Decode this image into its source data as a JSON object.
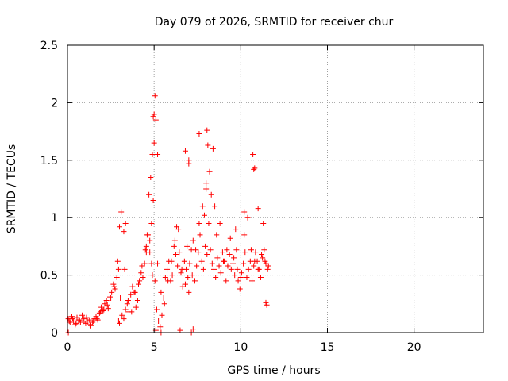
{
  "chart_data": {
    "type": "scatter",
    "title": "Day 079 of 2026, SRMTID for receiver chur",
    "xlabel": "GPS time / hours",
    "ylabel": "SRMTID / TECUs",
    "xlim": [
      0,
      24
    ],
    "ylim": [
      0,
      2.5
    ],
    "xticks": [
      0,
      5,
      10,
      15,
      20
    ],
    "yticks": [
      0,
      0.5,
      1,
      1.5,
      2,
      2.5
    ],
    "ytick_labels": [
      "0",
      "0.5",
      "1",
      "1.5",
      "2",
      "2.5"
    ],
    "grid": true,
    "marker": "+",
    "series": [
      {
        "name": "chur",
        "color": "#ff0000",
        "x": [
          0.05,
          0.15,
          0.25,
          0.35,
          0.45,
          0.55,
          0.65,
          0.75,
          0.85,
          0.95,
          1.05,
          1.15,
          1.25,
          1.35,
          1.45,
          1.55,
          1.65,
          1.75,
          1.85,
          1.95,
          2.05,
          2.15,
          2.25,
          2.35,
          2.45,
          2.55,
          2.65,
          2.75,
          2.85,
          2.95,
          3.05,
          3.15,
          3.25,
          3.35,
          3.45,
          3.55,
          3.65,
          3.75,
          3.85,
          3.95,
          4.05,
          4.15,
          4.25,
          4.35,
          4.45,
          4.55,
          4.65,
          4.75,
          4.85,
          4.95,
          5.05,
          5.15,
          5.25,
          5.35,
          5.45,
          5.55,
          5.65,
          5.75,
          5.85,
          5.95,
          6.05,
          6.15,
          6.25,
          6.35,
          6.45,
          6.55,
          6.65,
          6.75,
          6.85,
          6.95,
          7.05,
          7.15,
          7.25,
          7.35,
          7.45,
          7.55,
          7.65,
          7.75,
          7.85,
          7.95,
          8.05,
          8.15,
          8.25,
          8.35,
          8.45,
          8.55,
          8.65,
          8.75,
          8.85,
          8.95,
          9.05,
          9.15,
          9.25,
          9.35,
          9.45,
          9.55,
          9.65,
          9.75,
          9.85,
          9.95,
          10.05,
          10.15,
          10.25,
          10.35,
          10.45,
          10.55,
          10.65,
          10.75,
          10.85,
          10.95,
          11.05,
          11.15,
          11.25,
          11.35,
          11.45,
          11.55,
          0.1,
          0.3,
          0.5,
          0.7,
          0.9,
          1.1,
          1.3,
          1.5,
          1.7,
          1.9,
          2.1,
          2.3,
          2.5,
          2.7,
          2.9,
          3.0,
          3.1,
          3.3,
          3.5,
          3.7,
          3.9,
          4.1,
          4.3,
          4.5,
          4.6,
          4.7,
          4.8,
          4.9,
          5.0,
          5.1,
          5.2,
          5.4,
          5.6,
          5.8,
          6.0,
          6.2,
          6.4,
          6.6,
          6.8,
          7.0,
          7.2,
          7.4,
          7.6,
          7.8,
          8.0,
          8.2,
          8.4,
          8.6,
          8.8,
          9.0,
          9.2,
          9.4,
          9.6,
          9.8,
          10.0,
          10.2,
          10.4,
          10.6,
          10.8,
          11.0,
          11.2,
          11.4,
          11.6,
          0.05,
          5.0,
          5.05,
          4.95,
          5.2,
          6.8,
          7.0,
          8.05,
          8.1,
          7.6,
          7.0,
          10.7,
          10.75,
          10.8,
          2.95,
          3.0,
          4.9,
          4.85,
          5.1,
          5.4,
          6.5,
          7.15,
          7.25,
          8.0,
          8.3,
          9.25,
          11.5,
          11.45,
          3.25,
          3.35,
          4.75,
          4.55,
          6.3,
          6.9,
          7.9,
          8.5,
          9.7,
          10.2,
          11.0,
          11.3
        ],
        "y": [
          0.12,
          0.09,
          0.14,
          0.1,
          0.07,
          0.13,
          0.11,
          0.09,
          0.15,
          0.12,
          0.08,
          0.1,
          0.11,
          0.06,
          0.09,
          0.12,
          0.14,
          0.11,
          0.17,
          0.22,
          0.19,
          0.25,
          0.28,
          0.21,
          0.31,
          0.35,
          0.42,
          0.38,
          0.48,
          0.55,
          0.3,
          0.15,
          0.12,
          0.2,
          0.25,
          0.18,
          0.33,
          0.4,
          0.35,
          0.22,
          0.28,
          0.45,
          0.52,
          0.48,
          0.6,
          0.75,
          0.85,
          0.7,
          0.95,
          1.15,
          0.45,
          0.2,
          0.1,
          0.05,
          0.15,
          0.3,
          0.48,
          0.55,
          0.62,
          0.45,
          0.5,
          0.75,
          0.68,
          0.58,
          0.7,
          0.52,
          0.4,
          0.62,
          0.55,
          0.48,
          0.6,
          0.72,
          0.8,
          0.45,
          0.58,
          0.7,
          0.85,
          0.62,
          0.55,
          0.75,
          0.68,
          0.95,
          0.72,
          0.6,
          0.55,
          0.48,
          0.65,
          0.58,
          0.52,
          0.7,
          0.62,
          0.45,
          0.58,
          0.68,
          0.55,
          0.6,
          0.5,
          0.72,
          0.45,
          0.38,
          0.52,
          0.6,
          0.7,
          0.48,
          0.55,
          0.62,
          0.45,
          0.58,
          0.7,
          0.62,
          0.55,
          0.48,
          0.65,
          0.72,
          0.6,
          0.55,
          0.1,
          0.12,
          0.08,
          0.11,
          0.09,
          0.13,
          0.07,
          0.1,
          0.12,
          0.18,
          0.2,
          0.24,
          0.3,
          0.4,
          0.62,
          0.92,
          1.05,
          0.55,
          0.28,
          0.18,
          0.35,
          0.42,
          0.58,
          0.72,
          0.85,
          1.2,
          1.35,
          1.55,
          1.65,
          1.85,
          0.6,
          0.35,
          0.25,
          0.45,
          0.62,
          0.8,
          0.9,
          0.55,
          0.42,
          0.35,
          0.5,
          0.72,
          0.95,
          1.1,
          1.25,
          1.4,
          1.6,
          0.85,
          0.95,
          0.62,
          0.72,
          0.82,
          0.65,
          0.55,
          0.48,
          0.85,
          1.0,
          0.72,
          0.62,
          0.55,
          0.68,
          0.62,
          0.58,
          0.0,
          1.9,
          2.06,
          1.88,
          1.55,
          1.58,
          1.5,
          1.76,
          1.63,
          1.73,
          1.47,
          1.55,
          1.42,
          1.43,
          0.1,
          0.08,
          0.5,
          0.6,
          0.02,
          0.0,
          0.02,
          0.0,
          0.03,
          1.3,
          1.2,
          0.58,
          0.24,
          0.26,
          0.88,
          0.95,
          0.8,
          0.7,
          0.92,
          0.75,
          1.02,
          1.1,
          0.9,
          1.05,
          1.08,
          0.95
        ]
      }
    ]
  }
}
